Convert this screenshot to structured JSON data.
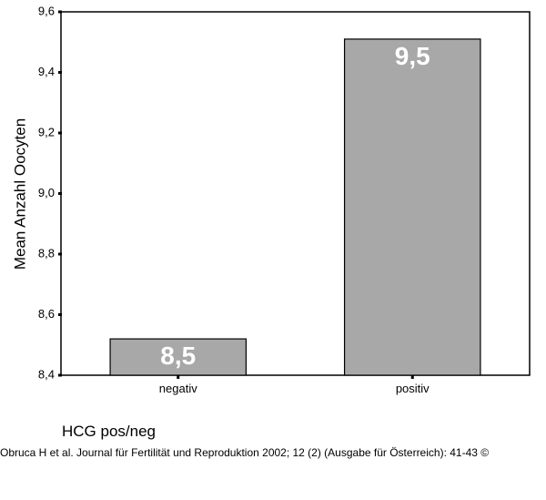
{
  "chart_data": {
    "type": "bar",
    "categories": [
      "negativ",
      "positiv"
    ],
    "values": [
      8.52,
      9.51
    ],
    "data_labels": [
      "8,5",
      "9,5"
    ],
    "ylabel": "Mean Anzahl Oocyten",
    "xlabel": "HCG pos/neg",
    "ylim": [
      8.4,
      9.6
    ],
    "yticks": [
      8.4,
      8.6,
      8.8,
      9.0,
      9.2,
      9.4,
      9.6
    ],
    "ytick_labels": [
      "8,4",
      "8,6",
      "8,8",
      "9,0",
      "9,2",
      "9,4",
      "9,6"
    ],
    "grid": false,
    "bar_color": "#a8a8a8"
  },
  "citation": "Obruca H et al. Journal für Fertilität und Reproduktion 2002; 12 (2) (Ausgabe für Österreich): 41-43 ©"
}
